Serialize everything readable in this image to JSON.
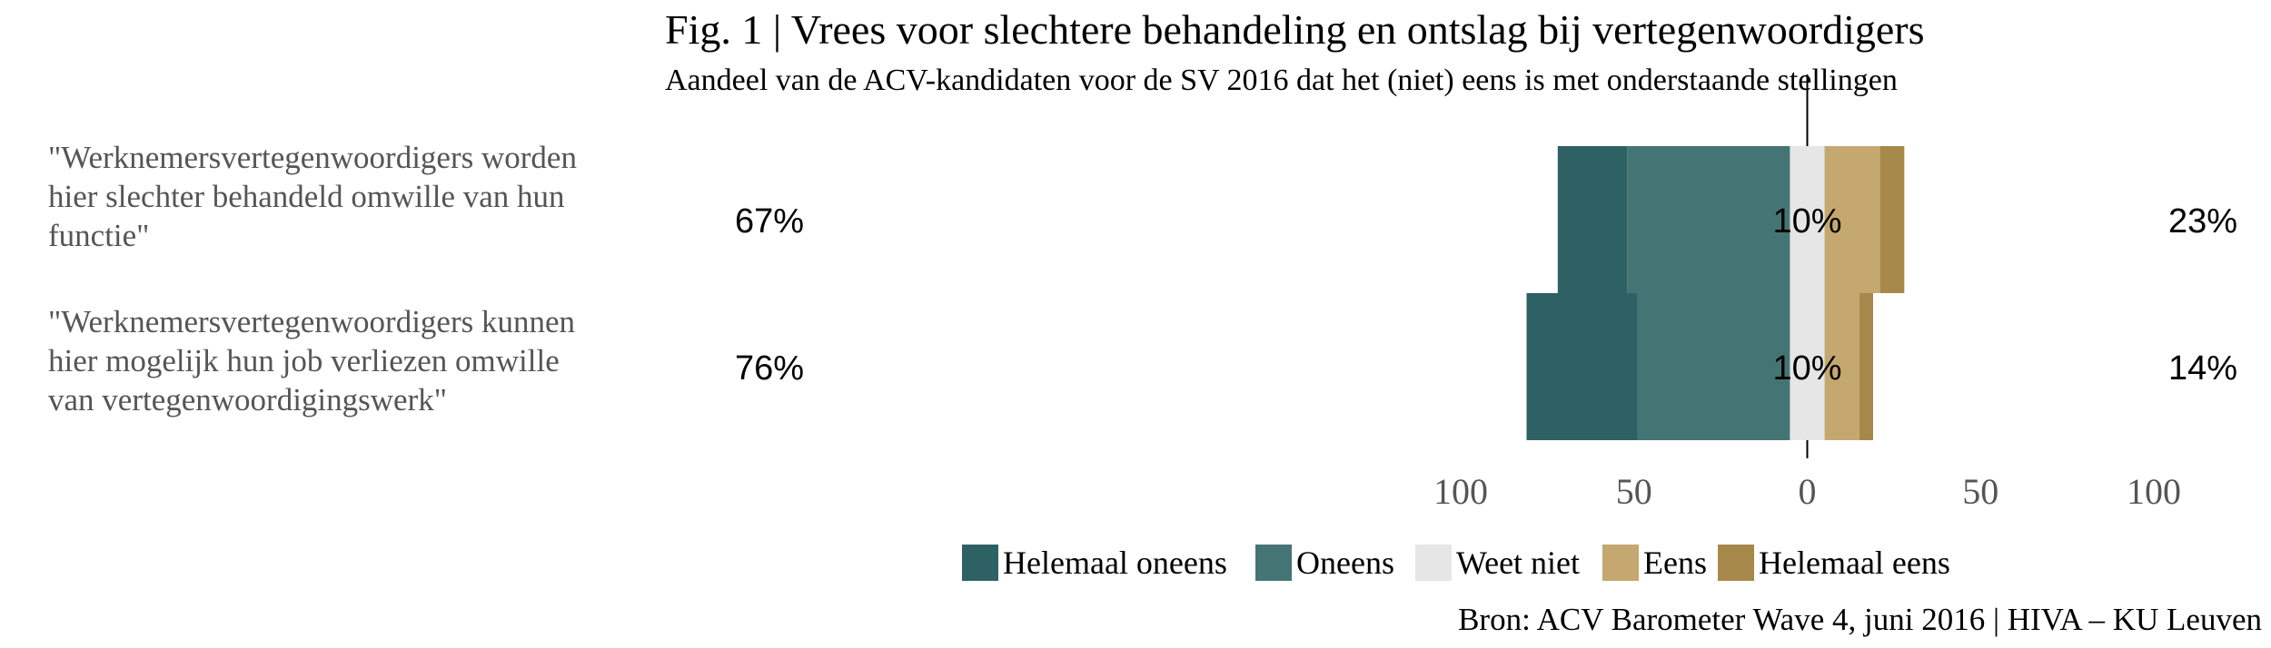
{
  "chart_data": {
    "type": "bar",
    "orientation": "horizontal-diverging",
    "title": "Fig. 1 | Vrees voor slechtere behandeling en ontslag bij vertegenwoordigers",
    "subtitle": "Aandeel van de ACV-kandidaten voor de SV 2016 dat het (niet) eens is met onderstaande stellingen",
    "source": "Bron: ACV Barometer Wave 4, juni 2016 | HIVA – KU Leuven",
    "categories": [
      "\"Werknemersvertegenwoordigers worden hier slechter behandeld omwille van hun functie\"",
      "\"Werknemersvertegenwoordigers kunnen hier mogelijk hun job verliezen omwille van vertegenwoordigingswerk\""
    ],
    "category_lines": [
      [
        "\"Werknemersvertegenwoordigers worden",
        "hier slechter behandeld omwille van hun",
        "functie\""
      ],
      [
        "\"Werknemersvertegenwoordigers kunnen",
        "hier mogelijk hun job verliezen omwille",
        "van vertegenwoordigingswerk\""
      ]
    ],
    "series": [
      {
        "name": "Helemaal oneens",
        "color": "#2e6163",
        "values": [
          20,
          32
        ]
      },
      {
        "name": "Oneens",
        "color": "#457474",
        "values": [
          47,
          44
        ]
      },
      {
        "name": "Weet niet",
        "color": "#e6e6e6",
        "values": [
          10,
          10
        ]
      },
      {
        "name": "Eens",
        "color": "#c4a870",
        "values": [
          16,
          10
        ]
      },
      {
        "name": "Helemaal eens",
        "color": "#a6884a",
        "values": [
          7,
          4
        ]
      }
    ],
    "left_labels": [
      "67%",
      "76%"
    ],
    "center_labels": [
      "10%",
      "10%"
    ],
    "right_labels": [
      "23%",
      "14%"
    ],
    "xlim": [
      -100,
      100
    ],
    "x_ticks": [
      -100,
      -50,
      0,
      50,
      100
    ],
    "x_tick_labels": [
      "100",
      "50",
      "0",
      "50",
      "100"
    ],
    "legend_position": "bottom",
    "grid": false
  }
}
